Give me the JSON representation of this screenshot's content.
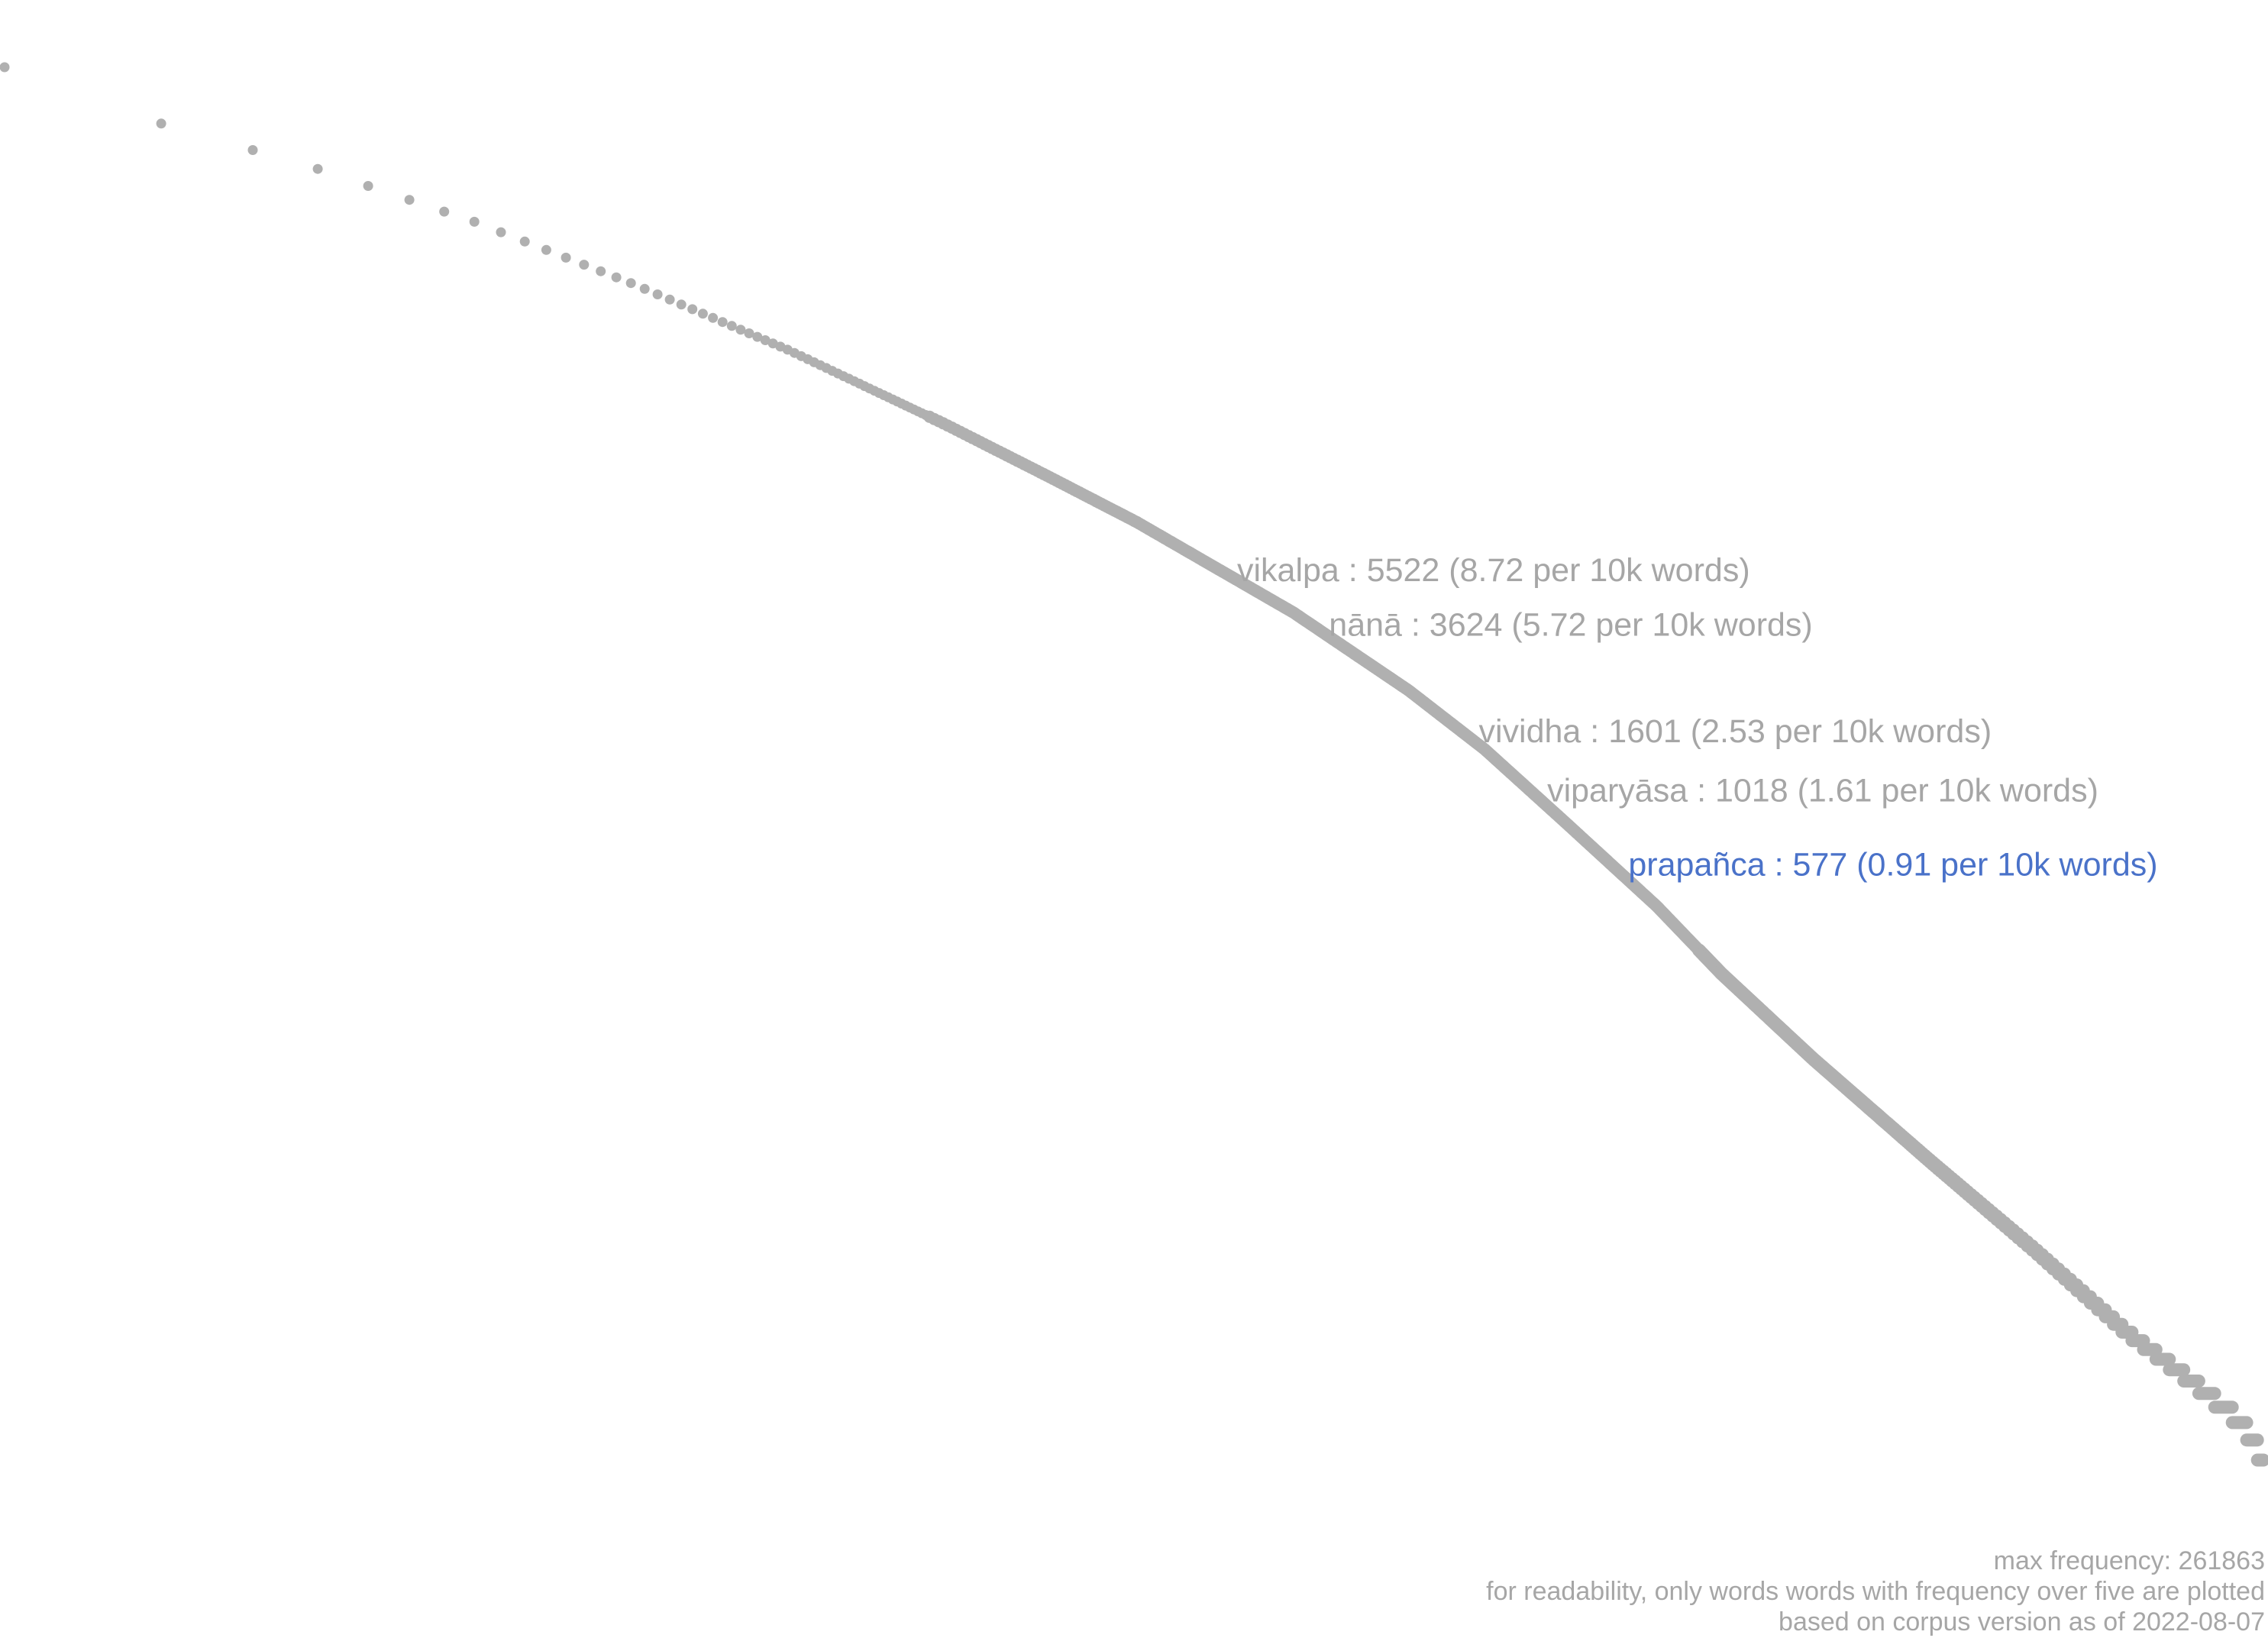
{
  "chart_data": {
    "type": "scatter",
    "title": "",
    "xlabel": "",
    "ylabel": "",
    "scale": "log-log",
    "grid": false,
    "legend": "none",
    "max_frequency": 261863,
    "min_frequency_plotted": 6,
    "curve": {
      "x": [
        1,
        2,
        4,
        8,
        16,
        32,
        64,
        100,
        150,
        200,
        300,
        500,
        700,
        1000,
        1500,
        2000,
        3000,
        5000,
        8000,
        12000,
        16000,
        20000,
        22000
      ],
      "y": [
        261863,
        170000,
        120000,
        80000,
        50000,
        30000,
        17000,
        11500,
        8000,
        6000,
        4000,
        2200,
        1400,
        800,
        420,
        250,
        130,
        60,
        30,
        16,
        11,
        8,
        6
      ]
    },
    "annotations": [
      {
        "text": "vikalpa : 5522 (8.72 per 10k words)",
        "word": "vikalpa",
        "frequency": 5522,
        "rate": 8.72,
        "highlight": false
      },
      {
        "text": "nānā : 3624 (5.72 per 10k words)",
        "word": "nānā",
        "frequency": 3624,
        "rate": 5.72,
        "highlight": false
      },
      {
        "text": "vividha : 1601 (2.53 per 10k words)",
        "word": "vividha",
        "frequency": 1601,
        "rate": 2.53,
        "highlight": false
      },
      {
        "text": "viparyāsa : 1018 (1.61 per 10k words)",
        "word": "viparyāsa",
        "frequency": 1018,
        "rate": 1.61,
        "highlight": false
      },
      {
        "text": "prapañca : 577 (0.91 per 10k words)",
        "word": "prapañca",
        "frequency": 577,
        "rate": 0.91,
        "highlight": true
      }
    ],
    "footnotes": {
      "max": "max frequency: 261863",
      "note": "for readability, only words words with frequency over five are plotted",
      "corpus": "based on corpus version as of 2022-08-07"
    },
    "colors": {
      "points": "#b0b0b0",
      "label": "#a6a6a6",
      "highlight": "#4a72c9",
      "footnote": "#a6a6a6"
    }
  }
}
